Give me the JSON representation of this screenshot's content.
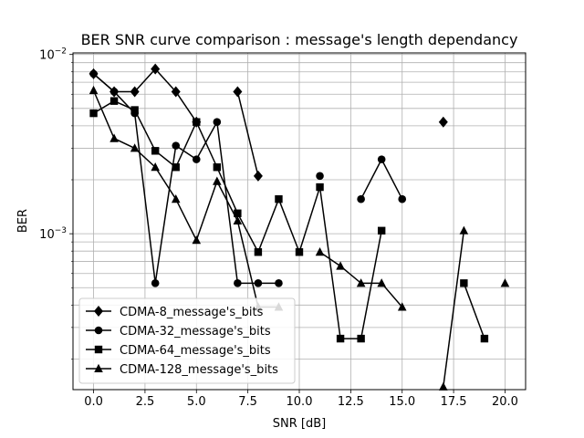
{
  "chart_data": {
    "type": "line",
    "title": "BER SNR curve comparison : message's length dependancy",
    "xlabel": "SNR [dB]",
    "ylabel": "BER",
    "yscale": "log",
    "xlim": [
      -1.0,
      21.0
    ],
    "ylim": [
      0.000135,
      0.0102
    ],
    "xticks": [
      0.0,
      2.5,
      5.0,
      7.5,
      10.0,
      12.5,
      15.0,
      17.5,
      20.0
    ],
    "xtick_labels": [
      "0.0",
      "2.5",
      "5.0",
      "7.5",
      "10.0",
      "12.5",
      "15.0",
      "17.5",
      "20.0"
    ],
    "ytick_major": [
      0.001,
      0.01
    ],
    "ytick_labels": [
      "10−3",
      "10−2"
    ],
    "ytick_minor": [
      0.0002,
      0.0003,
      0.0004,
      0.0005,
      0.0006,
      0.0007,
      0.0008,
      0.0009,
      0.002,
      0.003,
      0.004,
      0.005,
      0.006,
      0.007,
      0.008,
      0.009
    ],
    "grid": "both",
    "legend_position": "lower-left",
    "series": [
      {
        "name": "CDMA-8_message's_bits",
        "marker": "diamond",
        "color": "#000000",
        "segments": [
          [
            [
              0,
              0.0078
            ],
            [
              1,
              0.0062
            ],
            [
              2,
              0.0062
            ],
            [
              3,
              0.0083
            ],
            [
              4,
              0.0062
            ],
            [
              5,
              0.0042
            ]
          ],
          [
            [
              7,
              0.0062
            ],
            [
              8,
              0.0021
            ]
          ],
          [
            [
              17,
              0.0042
            ]
          ]
        ]
      },
      {
        "name": "CDMA-32_message's_bits",
        "marker": "circle",
        "color": "#000000",
        "segments": [
          [
            [
              0,
              0.0078
            ],
            [
              1,
              0.0062
            ],
            [
              2,
              0.0047
            ],
            [
              3,
              0.00053
            ],
            [
              4,
              0.0031
            ],
            [
              5,
              0.0026
            ],
            [
              6,
              0.0042
            ],
            [
              7,
              0.00053
            ],
            [
              8,
              0.00053
            ],
            [
              9,
              0.00053
            ]
          ],
          [
            [
              11,
              0.0021
            ]
          ],
          [
            [
              13,
              0.00156
            ],
            [
              14,
              0.0026
            ],
            [
              15,
              0.00156
            ]
          ]
        ]
      },
      {
        "name": "CDMA-64_message's_bits",
        "marker": "square",
        "color": "#000000",
        "segments": [
          [
            [
              0,
              0.0047
            ],
            [
              1,
              0.0055
            ],
            [
              2,
              0.0049
            ],
            [
              3,
              0.0029
            ],
            [
              4,
              0.00235
            ],
            [
              5,
              0.0042
            ],
            [
              6,
              0.00235
            ],
            [
              7,
              0.0013
            ],
            [
              8,
              0.00079
            ],
            [
              9,
              0.00156
            ],
            [
              10,
              0.00079
            ],
            [
              11,
              0.00182
            ],
            [
              12,
              0.00026
            ],
            [
              13,
              0.00026
            ],
            [
              14,
              0.00104
            ]
          ],
          [
            [
              18,
              0.00053
            ],
            [
              19,
              0.00026
            ]
          ]
        ]
      },
      {
        "name": "CDMA-128_message's_bits",
        "marker": "triangle",
        "color": "#000000",
        "segments": [
          [
            [
              0,
              0.0063
            ],
            [
              1,
              0.0034
            ],
            [
              2,
              0.003
            ],
            [
              3,
              0.00235
            ],
            [
              4,
              0.00156
            ],
            [
              5,
              0.00092
            ],
            [
              6,
              0.00196
            ],
            [
              7,
              0.00118
            ],
            [
              8,
              0.00039
            ],
            [
              9,
              0.00039
            ]
          ],
          [
            [
              11,
              0.00079
            ],
            [
              12,
              0.00066
            ],
            [
              13,
              0.00053
            ],
            [
              14,
              0.00053
            ],
            [
              15,
              0.00039
            ]
          ],
          [
            [
              17,
              0.00014
            ],
            [
              18,
              0.00104
            ]
          ],
          [
            [
              20,
              0.00053
            ]
          ]
        ]
      }
    ]
  }
}
